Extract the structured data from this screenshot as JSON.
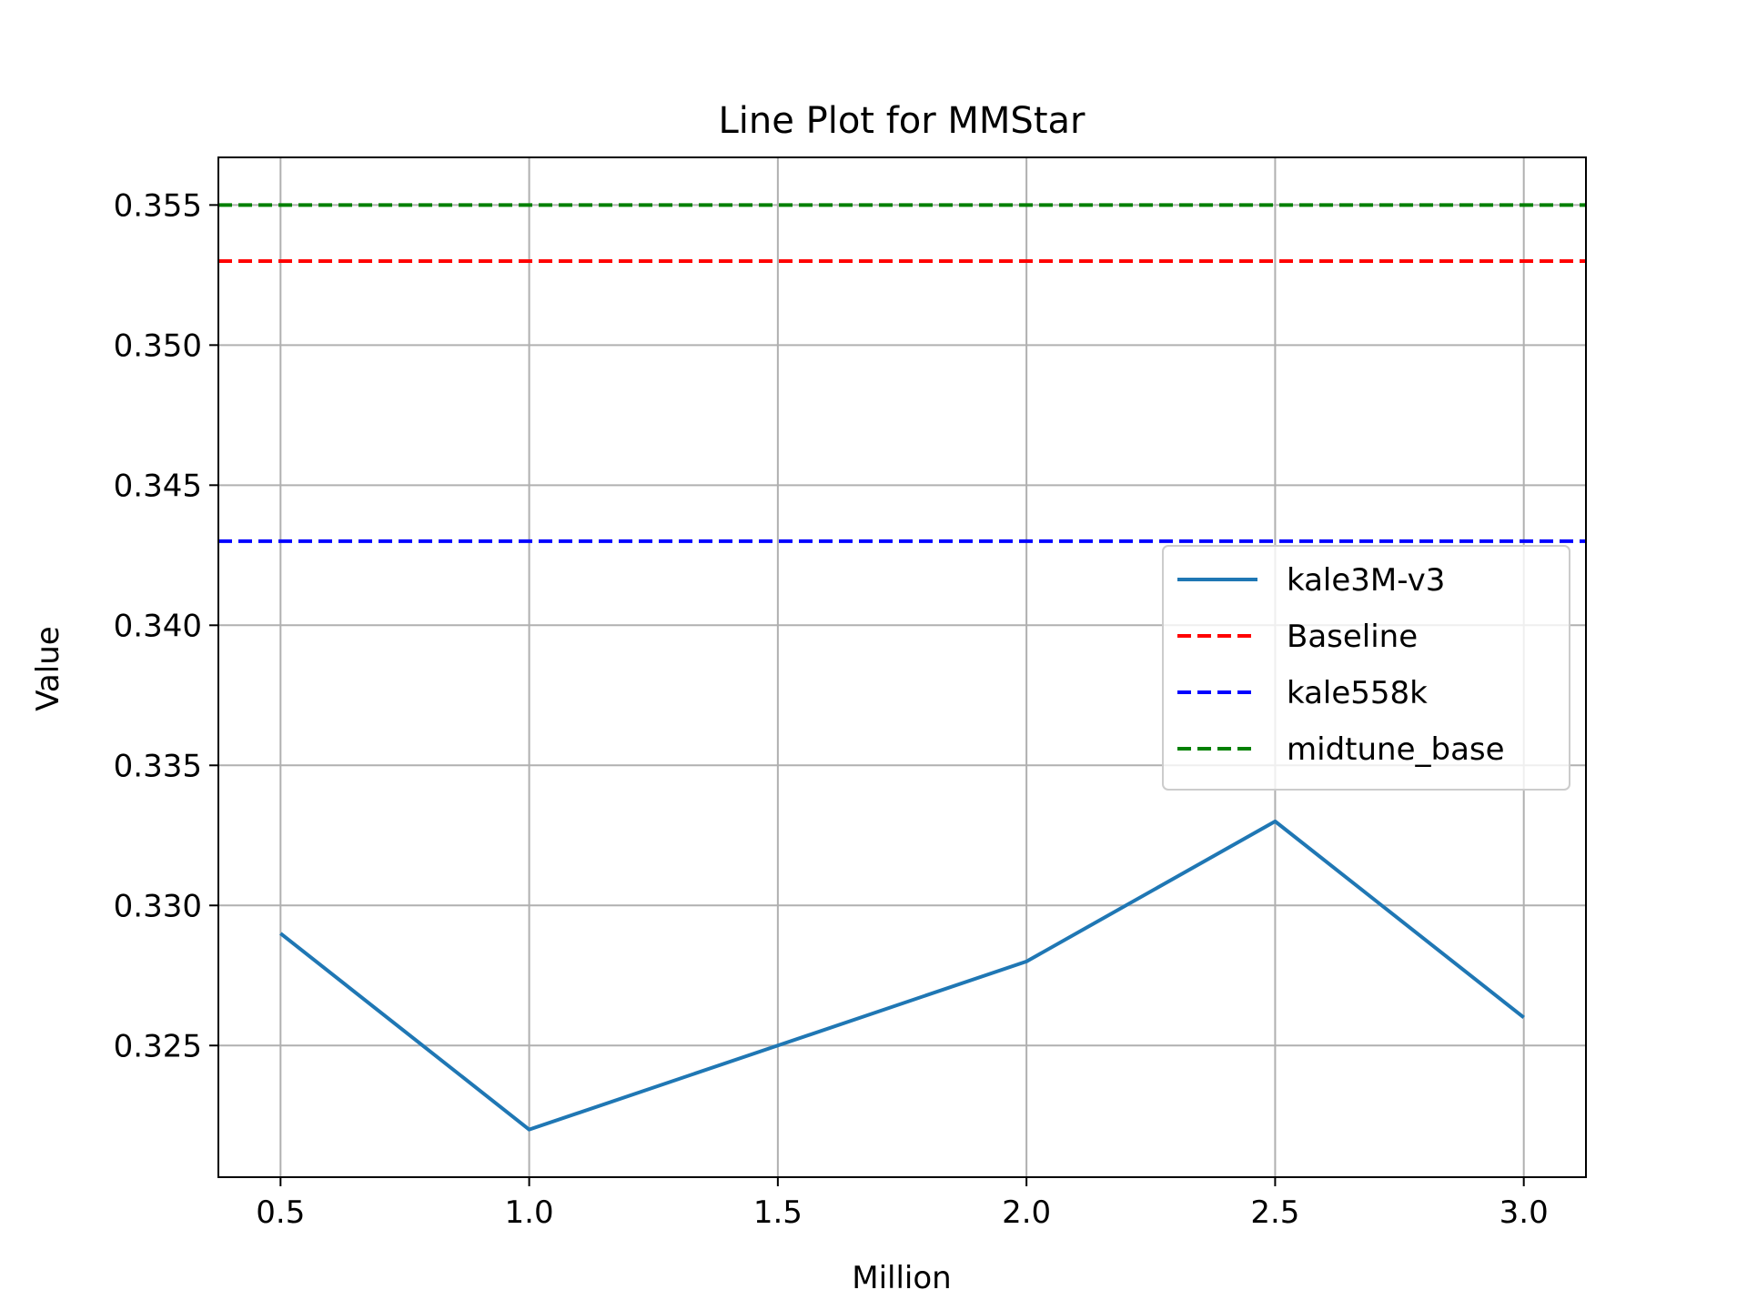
{
  "chart_data": {
    "type": "line",
    "title": "Line Plot for MMStar",
    "xlabel": "Million",
    "ylabel": "Value",
    "xlim": [
      0.375,
      3.125
    ],
    "ylim": [
      0.3203,
      0.3567
    ],
    "xticks": [
      0.5,
      1.0,
      1.5,
      2.0,
      2.5,
      3.0
    ],
    "xtick_labels": [
      "0.5",
      "1.0",
      "1.5",
      "2.0",
      "2.5",
      "3.0"
    ],
    "yticks": [
      0.325,
      0.33,
      0.335,
      0.34,
      0.345,
      0.35,
      0.355
    ],
    "ytick_labels": [
      "0.325",
      "0.330",
      "0.335",
      "0.340",
      "0.345",
      "0.350",
      "0.355"
    ],
    "grid": true,
    "legend_position": "center-right",
    "x": [
      0.5,
      1.0,
      1.5,
      2.0,
      2.5,
      3.0
    ],
    "series": [
      {
        "name": "kale3M-v3",
        "style": "solid",
        "color": "#1f77b4",
        "values": [
          0.329,
          0.322,
          0.325,
          0.328,
          0.333,
          0.326
        ]
      }
    ],
    "reference_lines": [
      {
        "name": "Baseline",
        "style": "dashed",
        "color": "#ff0000",
        "value": 0.353
      },
      {
        "name": "kale558k",
        "style": "dashed",
        "color": "#0000ff",
        "value": 0.343
      },
      {
        "name": "midtune_base",
        "style": "dashed",
        "color": "#008000",
        "value": 0.355
      }
    ]
  }
}
